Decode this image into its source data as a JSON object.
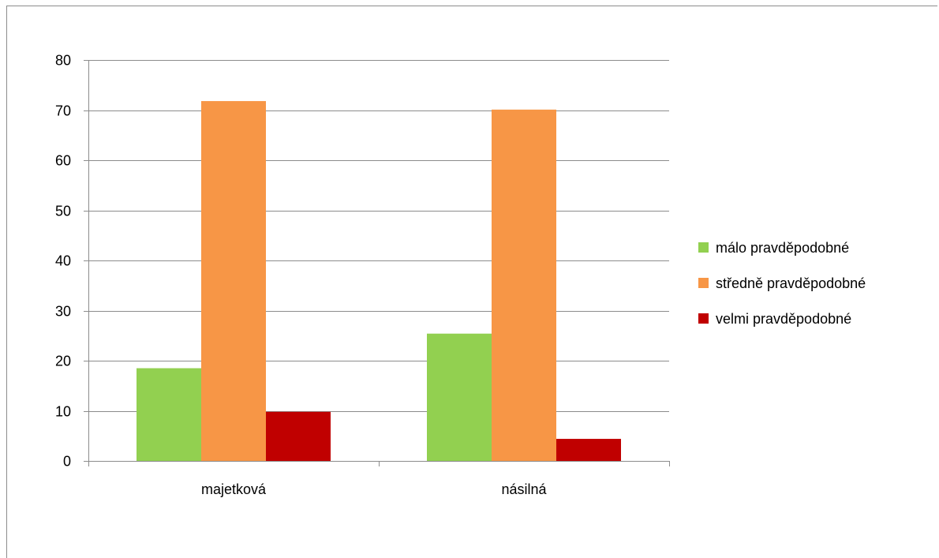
{
  "chart_data": {
    "type": "bar",
    "title": "",
    "xlabel": "",
    "ylabel": "",
    "categories": [
      "majetková",
      "násilná"
    ],
    "ylim": [
      0,
      80
    ],
    "yticks": [
      0,
      10,
      20,
      30,
      40,
      50,
      60,
      70,
      80
    ],
    "grid": true,
    "legend_position": "right",
    "series": [
      {
        "name": "málo pravděpodobné",
        "color": "#92d050",
        "values": [
          18.5,
          25.4
        ]
      },
      {
        "name": "středně pravděpodobné",
        "color": "#f79646",
        "values": [
          71.8,
          70.1
        ]
      },
      {
        "name": "velmi pravděpodobné",
        "color": "#c00000",
        "values": [
          9.8,
          4.4
        ]
      }
    ]
  }
}
